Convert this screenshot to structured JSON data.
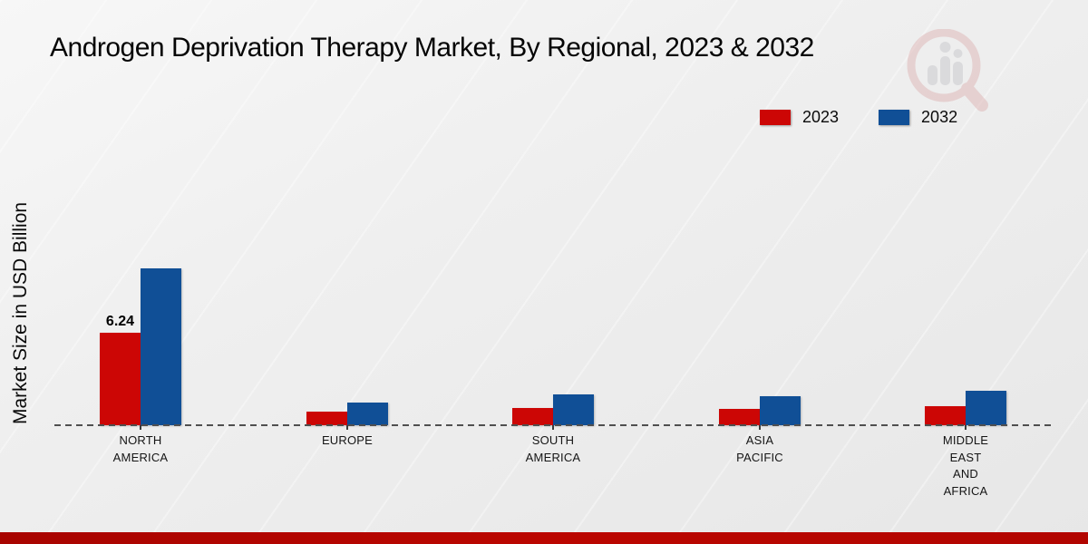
{
  "title": "Androgen Deprivation Therapy Market, By Regional, 2023 & 2032",
  "y_axis_label": "Market Size in USD Billion",
  "legend": {
    "position": "top-right",
    "items": [
      {
        "label": "2023",
        "color": "#cc0605"
      },
      {
        "label": "2032",
        "color": "#104f96"
      }
    ]
  },
  "icons": {
    "logo": "magnifier-bar-chart-watermark"
  },
  "footer": {
    "bar_color": "#b20500"
  },
  "chart_data": {
    "type": "bar",
    "title": "Androgen Deprivation Therapy Market, By Regional, 2023 & 2032",
    "xlabel": "",
    "ylabel": "Market Size in USD Billion",
    "ylim": [
      0,
      11
    ],
    "grid": false,
    "y_axis_ticks_visible": false,
    "baseline_style": "dashed",
    "legend_position": "top-right",
    "categories": [
      "NORTH AMERICA",
      "EUROPE",
      "SOUTH AMERICA",
      "ASIA PACIFIC",
      "MIDDLE EAST AND AFRICA"
    ],
    "category_lines": [
      [
        "NORTH",
        "AMERICA"
      ],
      [
        "EUROPE"
      ],
      [
        "SOUTH",
        "AMERICA"
      ],
      [
        "ASIA",
        "PACIFIC"
      ],
      [
        "MIDDLE",
        "EAST",
        "AND",
        "AFRICA"
      ]
    ],
    "series": [
      {
        "name": "2023",
        "color": "#cc0605",
        "values": [
          6.24,
          0.9,
          1.15,
          1.08,
          1.27
        ]
      },
      {
        "name": "2032",
        "color": "#104f96",
        "values": [
          10.58,
          1.55,
          2.05,
          1.95,
          2.3
        ]
      }
    ],
    "data_labels": [
      {
        "series": "2023",
        "category": "NORTH AMERICA",
        "text": "6.24"
      }
    ]
  }
}
